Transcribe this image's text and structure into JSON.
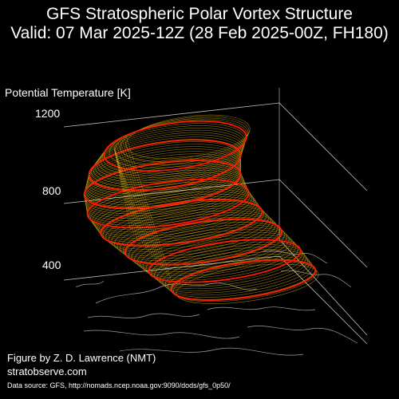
{
  "header": {
    "title_line1": "GFS Stratospheric Polar Vortex Structure",
    "title_line2": "Valid: 07 Mar 2025-12Z  (28 Feb 2025-00Z, FH180)"
  },
  "footer": {
    "credit_line1": "Figure by Z. D. Lawrence (NMT)",
    "credit_line2": "stratobserve.com",
    "source": "Data source: GFS, http://nomads.ncep.noaa.gov:9090/dods/gfs_0p50/"
  },
  "colors": {
    "background": "#000000",
    "contour_outline": "#ff1a00",
    "contour_fill": "#ffd21a",
    "grid": "#ffffff",
    "coastline": "#c8c8c8"
  },
  "chart_data": {
    "type": "3d-isosurface",
    "zlabel": "Potential Temperature [K]",
    "z_ticks": [
      400,
      800,
      1200
    ],
    "zlim": [
      300,
      1300
    ],
    "grid": true,
    "base_map": "coastlines",
    "highlighted_levels": [
      400,
      500,
      600,
      700,
      800,
      900,
      1000,
      1100
    ],
    "vortex_rings": [
      {
        "theta": 380,
        "center_lon_shift": 0.02,
        "width": 0.6,
        "depth": 0.12
      },
      {
        "theta": 500,
        "center_lon_shift": 0.0,
        "width": 0.64,
        "depth": 0.13
      },
      {
        "theta": 600,
        "center_lon_shift": -0.02,
        "width": 0.66,
        "depth": 0.14
      },
      {
        "theta": 700,
        "center_lon_shift": -0.04,
        "width": 0.68,
        "depth": 0.14
      },
      {
        "theta": 800,
        "center_lon_shift": -0.05,
        "width": 0.68,
        "depth": 0.15
      },
      {
        "theta": 900,
        "center_lon_shift": -0.05,
        "width": 0.66,
        "depth": 0.15
      },
      {
        "theta": 1000,
        "center_lon_shift": -0.04,
        "width": 0.64,
        "depth": 0.16
      },
      {
        "theta": 1100,
        "center_lon_shift": -0.02,
        "width": 0.6,
        "depth": 0.16
      },
      {
        "theta": 1150,
        "center_lon_shift": 0.0,
        "width": 0.52,
        "depth": 0.14
      }
    ]
  }
}
